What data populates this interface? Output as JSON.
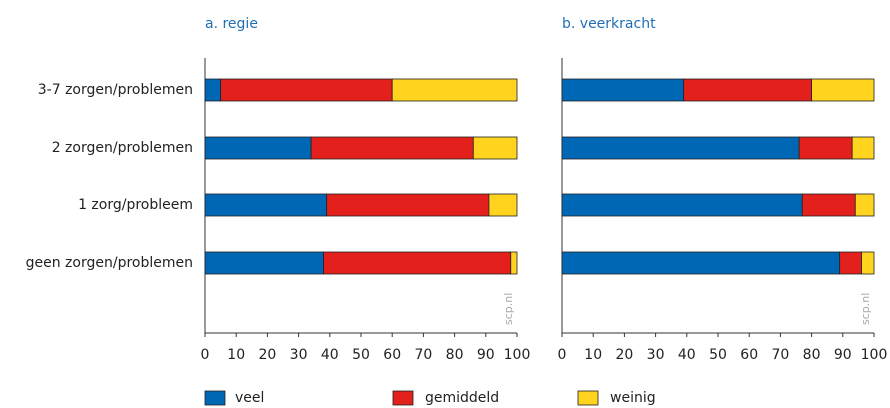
{
  "chart_data": [
    {
      "type": "stacked-bar-horizontal",
      "title": "a. regie",
      "watermark": "scp.nl",
      "categories": [
        "3-7 zorgen/problemen",
        "2 zorgen/problemen",
        "1 zorg/probleem",
        "geen zorgen/problemen"
      ],
      "series": [
        {
          "name": "veel",
          "color": "#0067b4",
          "values": [
            5,
            34,
            39,
            38
          ]
        },
        {
          "name": "gemiddeld",
          "color": "#e3201b",
          "values": [
            55,
            52,
            52,
            60
          ]
        },
        {
          "name": "weinig",
          "color": "#ffd31e",
          "values": [
            40,
            14,
            9,
            2
          ]
        }
      ],
      "xlim": [
        0,
        100
      ],
      "xticks": [
        0,
        10,
        20,
        30,
        40,
        50,
        60,
        70,
        80,
        90,
        100
      ]
    },
    {
      "type": "stacked-bar-horizontal",
      "title": "b. veerkracht",
      "watermark": "scp.nl",
      "categories": [
        "3-7 zorgen/problemen",
        "2 zorgen/problemen",
        "1 zorg/probleem",
        "geen zorgen/problemen"
      ],
      "series": [
        {
          "name": "veel",
          "color": "#0067b4",
          "values": [
            39,
            76,
            77,
            89
          ]
        },
        {
          "name": "gemiddeld",
          "color": "#e3201b",
          "values": [
            41,
            17,
            17,
            7
          ]
        },
        {
          "name": "weinig",
          "color": "#ffd31e",
          "values": [
            20,
            7,
            6,
            4
          ]
        }
      ],
      "xlim": [
        0,
        100
      ],
      "xticks": [
        0,
        10,
        20,
        30,
        40,
        50,
        60,
        70,
        80,
        90,
        100
      ]
    }
  ]
}
